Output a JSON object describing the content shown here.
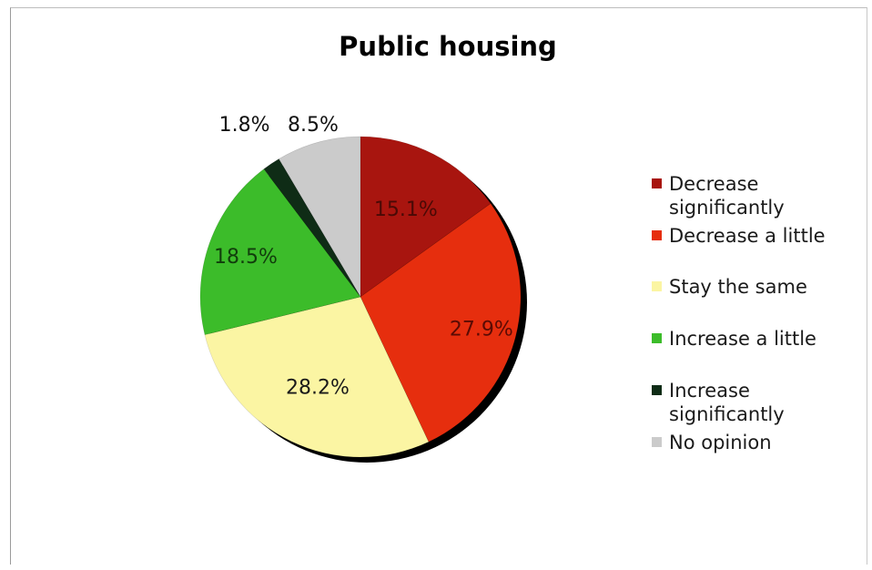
{
  "chart_data": {
    "type": "pie",
    "title": "Public housing",
    "categories": [
      "Decrease significantly",
      "Decrease a little",
      "Stay the same",
      "Increase a little",
      "Increase significantly",
      "No opinion"
    ],
    "values": [
      15.1,
      27.9,
      28.2,
      18.5,
      1.8,
      8.5
    ],
    "data_labels": [
      "15.1%",
      "27.9%",
      "28.2%",
      "18.5%",
      "1.8%",
      "8.5%"
    ],
    "colors": [
      "#a8150f",
      "#e62e0e",
      "#fbf5a3",
      "#3cbc2a",
      "#0f2c16",
      "#cbcbcb"
    ],
    "start_angle_deg": 0,
    "direction": "clockwise",
    "legend_position": "right"
  }
}
